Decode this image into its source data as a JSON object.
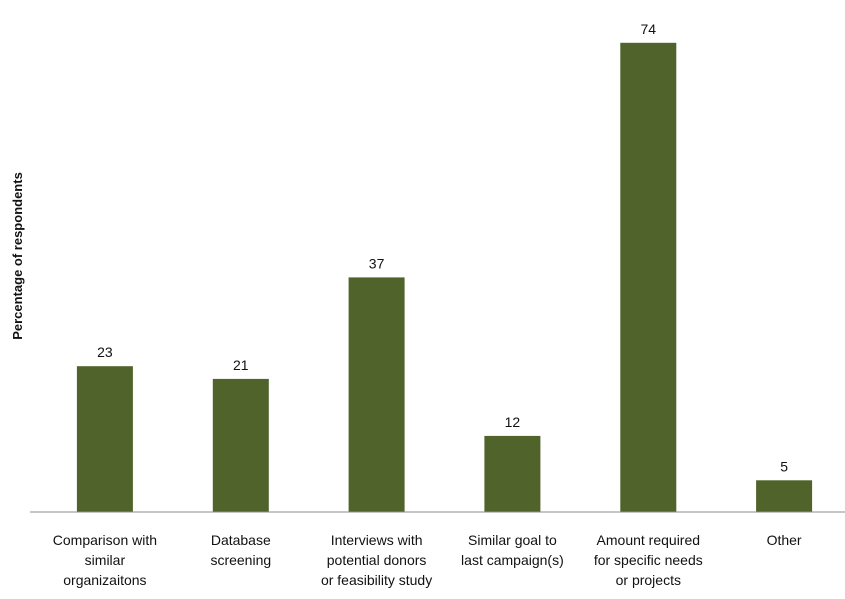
{
  "chart_data": {
    "type": "bar",
    "title": "",
    "xlabel": "",
    "ylabel": "Percentage of respondents",
    "categories": [
      [
        "Comparison with",
        "similar",
        "organizaitons"
      ],
      [
        "Database",
        "screening"
      ],
      [
        "Interviews with",
        "potential donors",
        "or feasibility study"
      ],
      [
        "Similar goal to",
        "last campaign(s)"
      ],
      [
        "Amount required",
        "for specific needs",
        "or projects"
      ],
      [
        "Other"
      ]
    ],
    "values": [
      23,
      21,
      37,
      12,
      74,
      5
    ],
    "data_labels": [
      "23",
      "21",
      "37",
      "12",
      "74",
      "5"
    ],
    "ylim": [
      0,
      80
    ],
    "grid": false,
    "legend": "none",
    "bar_color": "#4f632a",
    "axis_color": "#8c8c8c",
    "text_color": "#111111"
  }
}
